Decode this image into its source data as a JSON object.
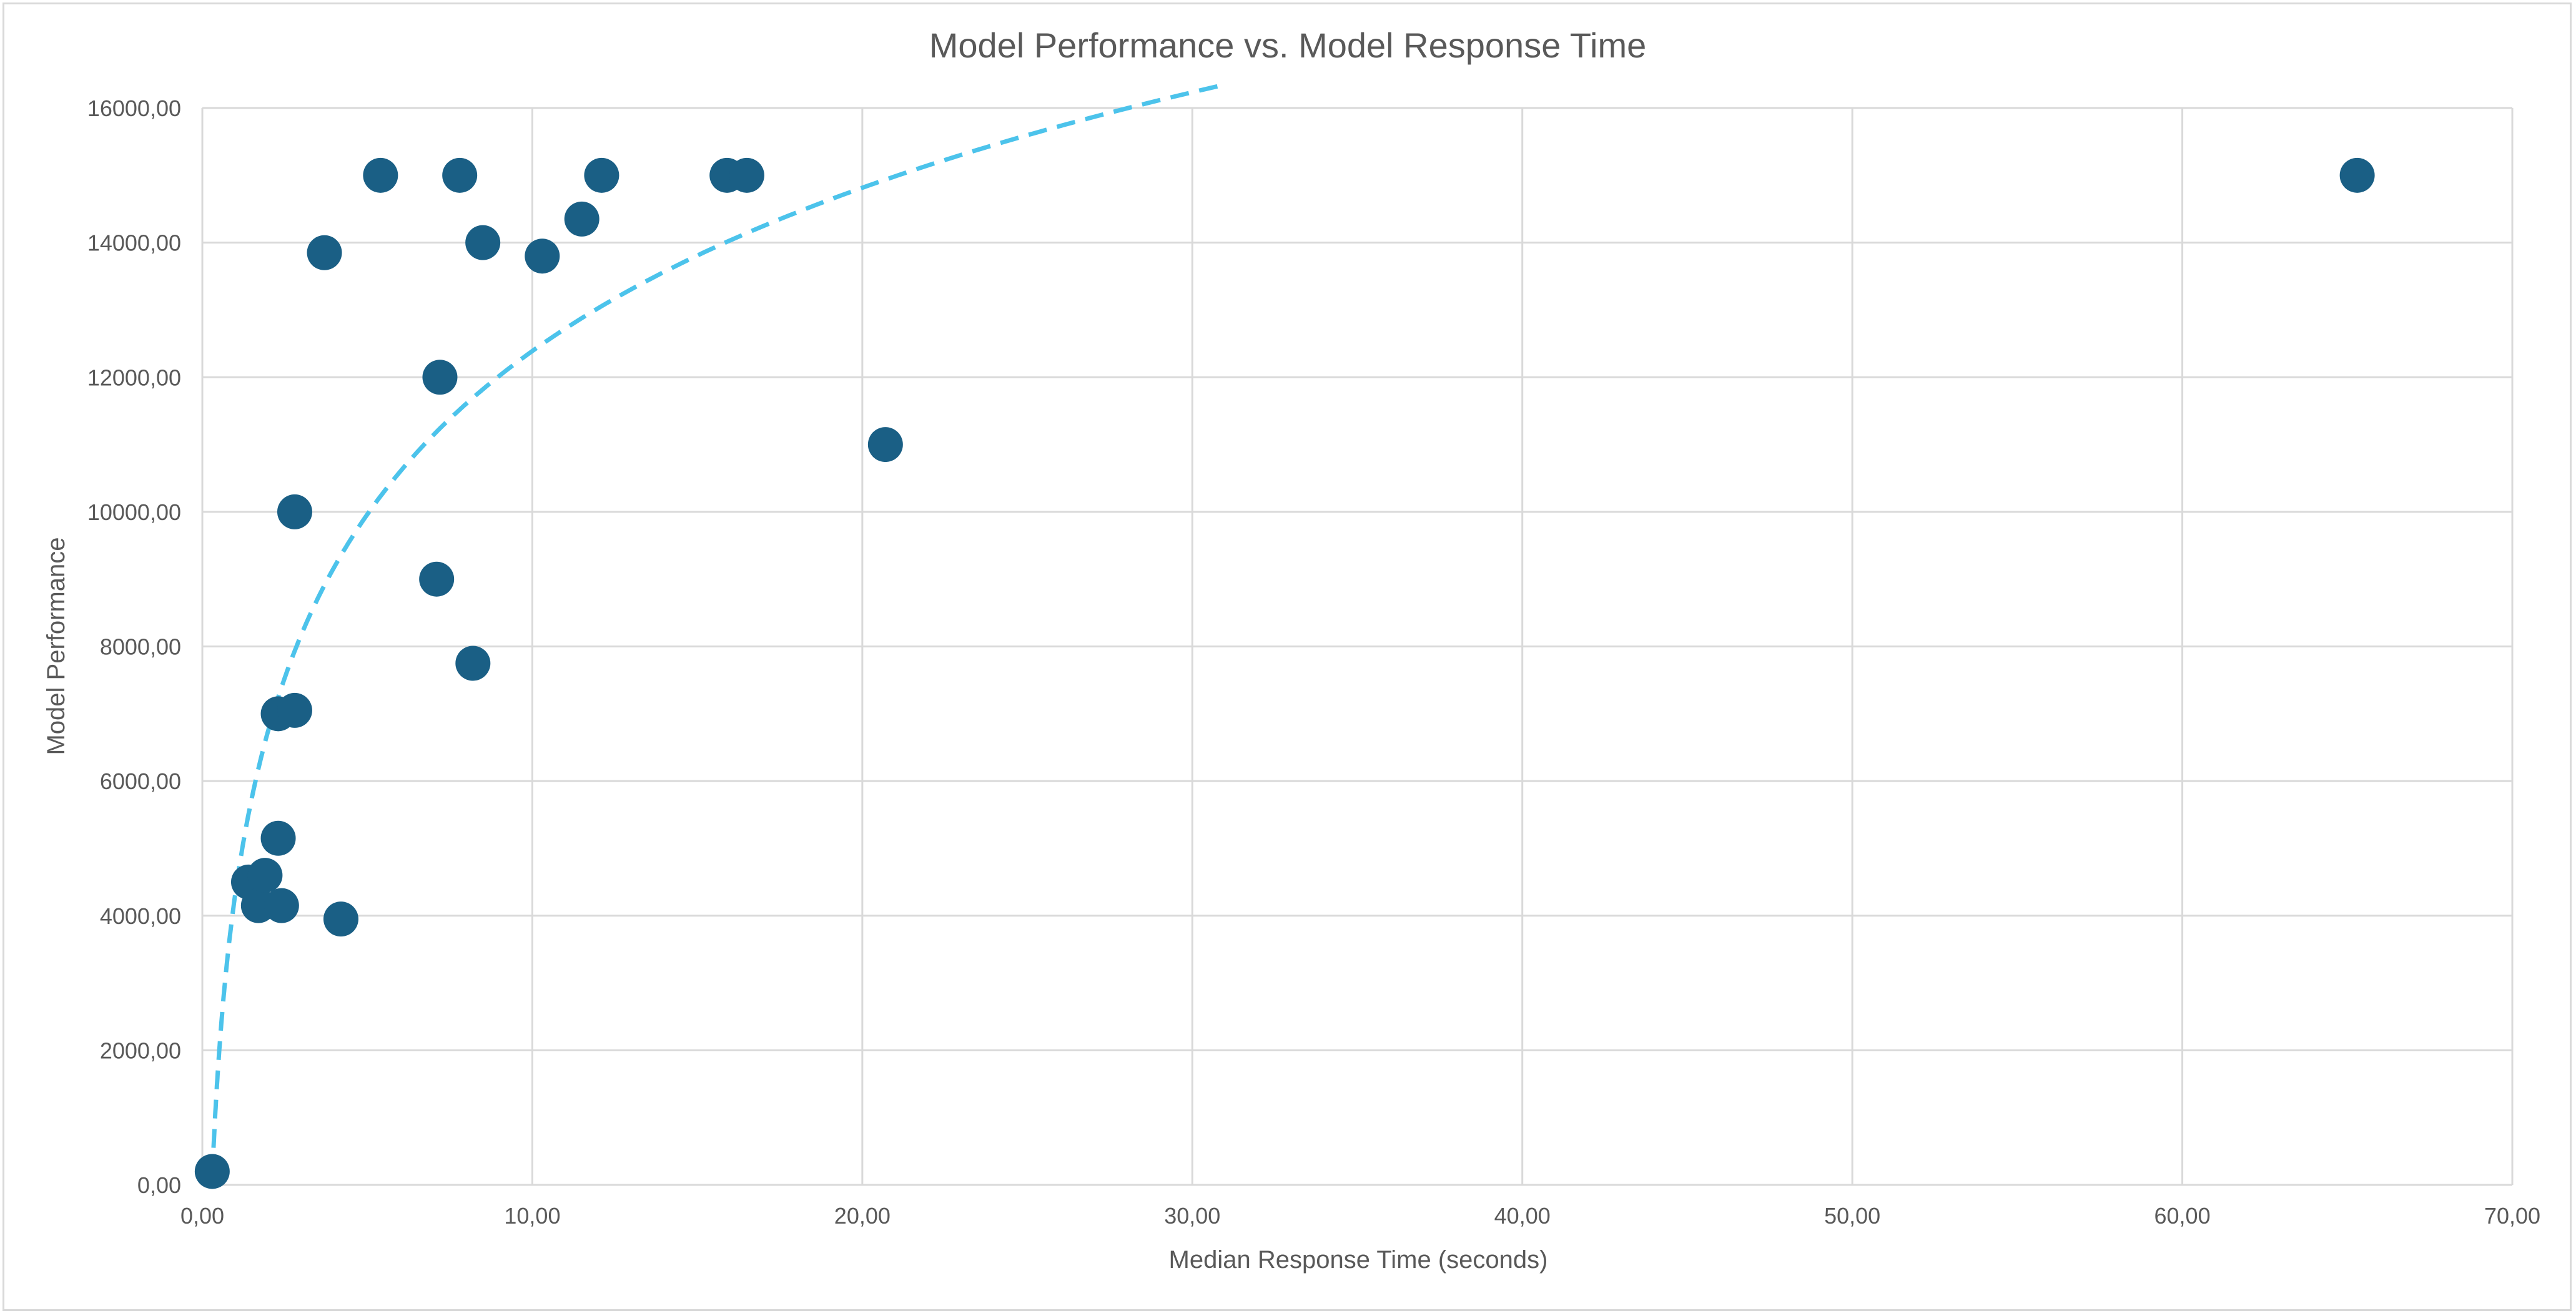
{
  "chart_data": {
    "type": "scatter",
    "title": "Model Performance vs. Model Response Time",
    "xlabel": "Median Response Time (seconds)",
    "ylabel": "Model Performance",
    "xlim": [
      0,
      70
    ],
    "ylim": [
      0,
      16000
    ],
    "x_ticks": [
      0,
      10,
      20,
      30,
      40,
      50,
      60,
      70
    ],
    "y_ticks": [
      0,
      2000,
      4000,
      6000,
      8000,
      10000,
      12000,
      14000,
      16000
    ],
    "x_tick_labels": [
      "0,00",
      "10,00",
      "20,00",
      "30,00",
      "40,00",
      "50,00",
      "60,00",
      "70,00"
    ],
    "y_tick_labels": [
      "0,00",
      "2000,00",
      "4000,00",
      "6000,00",
      "8000,00",
      "10000,00",
      "12000,00",
      "14000,00",
      "16000,00"
    ],
    "grid": true,
    "legend": "none",
    "marker_color": "#1a5f85",
    "trendline_color": "#4cc3eb",
    "trendline_style": "dashed",
    "trendline_type": "logarithmic",
    "points": [
      {
        "x": 0.3,
        "y": 200
      },
      {
        "x": 1.4,
        "y": 4500
      },
      {
        "x": 1.7,
        "y": 4150
      },
      {
        "x": 1.9,
        "y": 4600
      },
      {
        "x": 2.3,
        "y": 7000
      },
      {
        "x": 2.3,
        "y": 5150
      },
      {
        "x": 2.4,
        "y": 4150
      },
      {
        "x": 2.8,
        "y": 10000
      },
      {
        "x": 2.8,
        "y": 7050
      },
      {
        "x": 3.7,
        "y": 13850
      },
      {
        "x": 4.2,
        "y": 3950
      },
      {
        "x": 5.4,
        "y": 15000
      },
      {
        "x": 7.1,
        "y": 9000
      },
      {
        "x": 7.2,
        "y": 12000
      },
      {
        "x": 7.8,
        "y": 15000
      },
      {
        "x": 8.2,
        "y": 7750
      },
      {
        "x": 8.5,
        "y": 14000
      },
      {
        "x": 10.3,
        "y": 13800
      },
      {
        "x": 11.5,
        "y": 14350
      },
      {
        "x": 12.1,
        "y": 15000
      },
      {
        "x": 15.9,
        "y": 15000
      },
      {
        "x": 16.5,
        "y": 15000
      },
      {
        "x": 20.7,
        "y": 11000
      },
      {
        "x": 65.3,
        "y": 15000
      }
    ],
    "trendline": {
      "a": 3500,
      "b": 4330,
      "x_start": 0.3,
      "x_end": 31
    }
  }
}
